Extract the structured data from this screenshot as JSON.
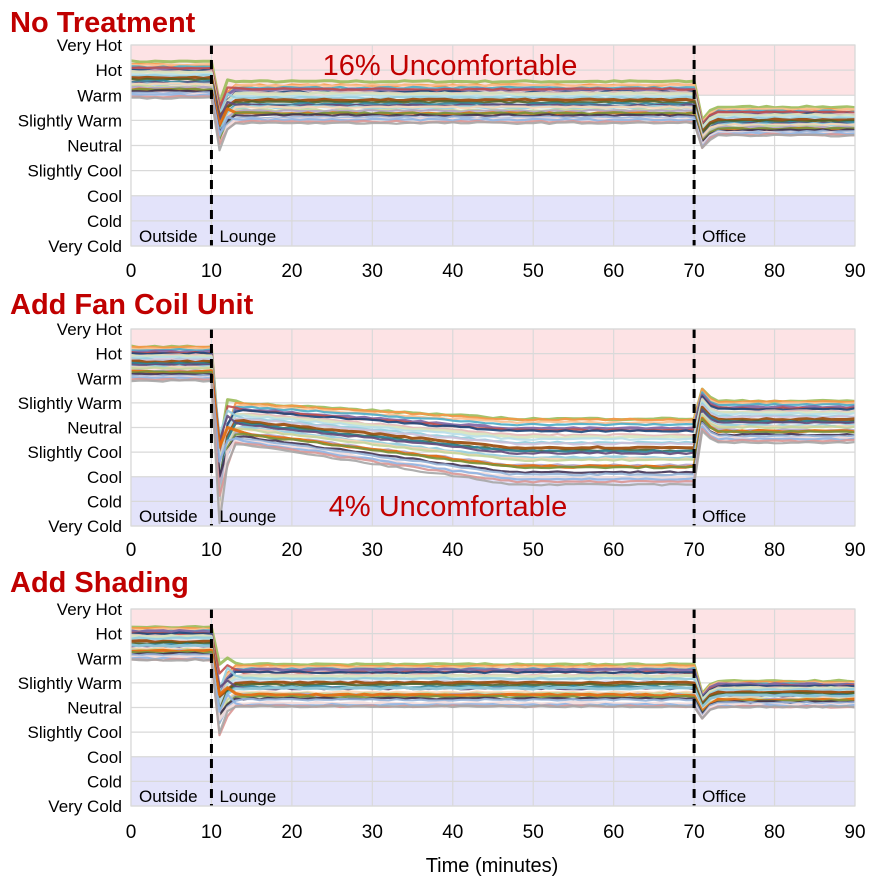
{
  "figure": {
    "xlabel": "Time (minutes)"
  },
  "colors": {
    "title": "#c00000",
    "annotation": "#c00000",
    "hot_zone": "#fde3e5",
    "cold_zone": "#e3e3fa",
    "grid": "#d9d9d9",
    "marker": "#000000"
  },
  "chart_data": [
    {
      "type": "line",
      "title": "No Treatment",
      "annotation": "16% Uncomfortable",
      "annotation_position": "top-center",
      "xlabel": "",
      "xlim": [
        0,
        90
      ],
      "xticks": [
        0,
        10,
        20,
        30,
        40,
        50,
        60,
        70,
        80,
        90
      ],
      "yticks": [
        "Very Hot",
        "Hot",
        "Warm",
        "Slightly Warm",
        "Neutral",
        "Slightly Cool",
        "Cool",
        "Cold",
        "Very Cold"
      ],
      "ylim": [
        -4,
        4
      ],
      "uncomfortable_bands": [
        [
          2,
          4
        ],
        [
          -4,
          -2
        ]
      ],
      "phases": [
        {
          "label": "Outside",
          "start": 0,
          "end": 10
        },
        {
          "label": "Lounge",
          "start": 10,
          "end": 70
        },
        {
          "label": "Office",
          "start": 70,
          "end": 90
        }
      ],
      "series_levels": {
        "outside": [
          3.3,
          1.9
        ],
        "lounge": [
          2.5,
          0.9
        ],
        "office": [
          1.5,
          0.4
        ]
      },
      "grid": true
    },
    {
      "type": "line",
      "title": "Add Fan Coil Unit",
      "annotation": "4% Uncomfortable",
      "annotation_position": "bottom-center",
      "xlabel": "",
      "xlim": [
        0,
        90
      ],
      "xticks": [
        0,
        10,
        20,
        30,
        40,
        50,
        60,
        70,
        80,
        90
      ],
      "yticks": [
        "Very Hot",
        "Hot",
        "Warm",
        "Slightly Warm",
        "Neutral",
        "Slightly Cool",
        "Cool",
        "Cold",
        "Very Cold"
      ],
      "ylim": [
        -4,
        4
      ],
      "uncomfortable_bands": [
        [
          2,
          4
        ],
        [
          -4,
          -2
        ]
      ],
      "phases": [
        {
          "label": "Outside",
          "start": 0,
          "end": 10
        },
        {
          "label": "Lounge",
          "start": 10,
          "end": 70
        },
        {
          "label": "Office",
          "start": 70,
          "end": 90
        }
      ],
      "series_levels": {
        "outside": [
          3.3,
          1.9
        ],
        "lounge_start": [
          1.1,
          -0.5
        ],
        "lounge_end": [
          0.4,
          -2.3
        ],
        "office": [
          1.1,
          -0.6
        ]
      },
      "grid": true
    },
    {
      "type": "line",
      "title": "Add Shading",
      "annotation": "",
      "xlabel": "Time (minutes)",
      "xlim": [
        0,
        90
      ],
      "xticks": [
        0,
        10,
        20,
        30,
        40,
        50,
        60,
        70,
        80,
        90
      ],
      "yticks": [
        "Very Hot",
        "Hot",
        "Warm",
        "Slightly Warm",
        "Neutral",
        "Slightly Cool",
        "Cool",
        "Cold",
        "Very Cold"
      ],
      "ylim": [
        -4,
        4
      ],
      "uncomfortable_bands": [
        [
          2,
          4
        ],
        [
          -4,
          -2
        ]
      ],
      "phases": [
        {
          "label": "Outside",
          "start": 0,
          "end": 10
        },
        {
          "label": "Lounge",
          "start": 10,
          "end": 70
        },
        {
          "label": "Office",
          "start": 70,
          "end": 90
        }
      ],
      "series_levels": {
        "outside": [
          3.3,
          1.9
        ],
        "lounge": [
          1.8,
          0.0
        ],
        "office": [
          1.1,
          0.0
        ]
      },
      "grid": true
    }
  ]
}
